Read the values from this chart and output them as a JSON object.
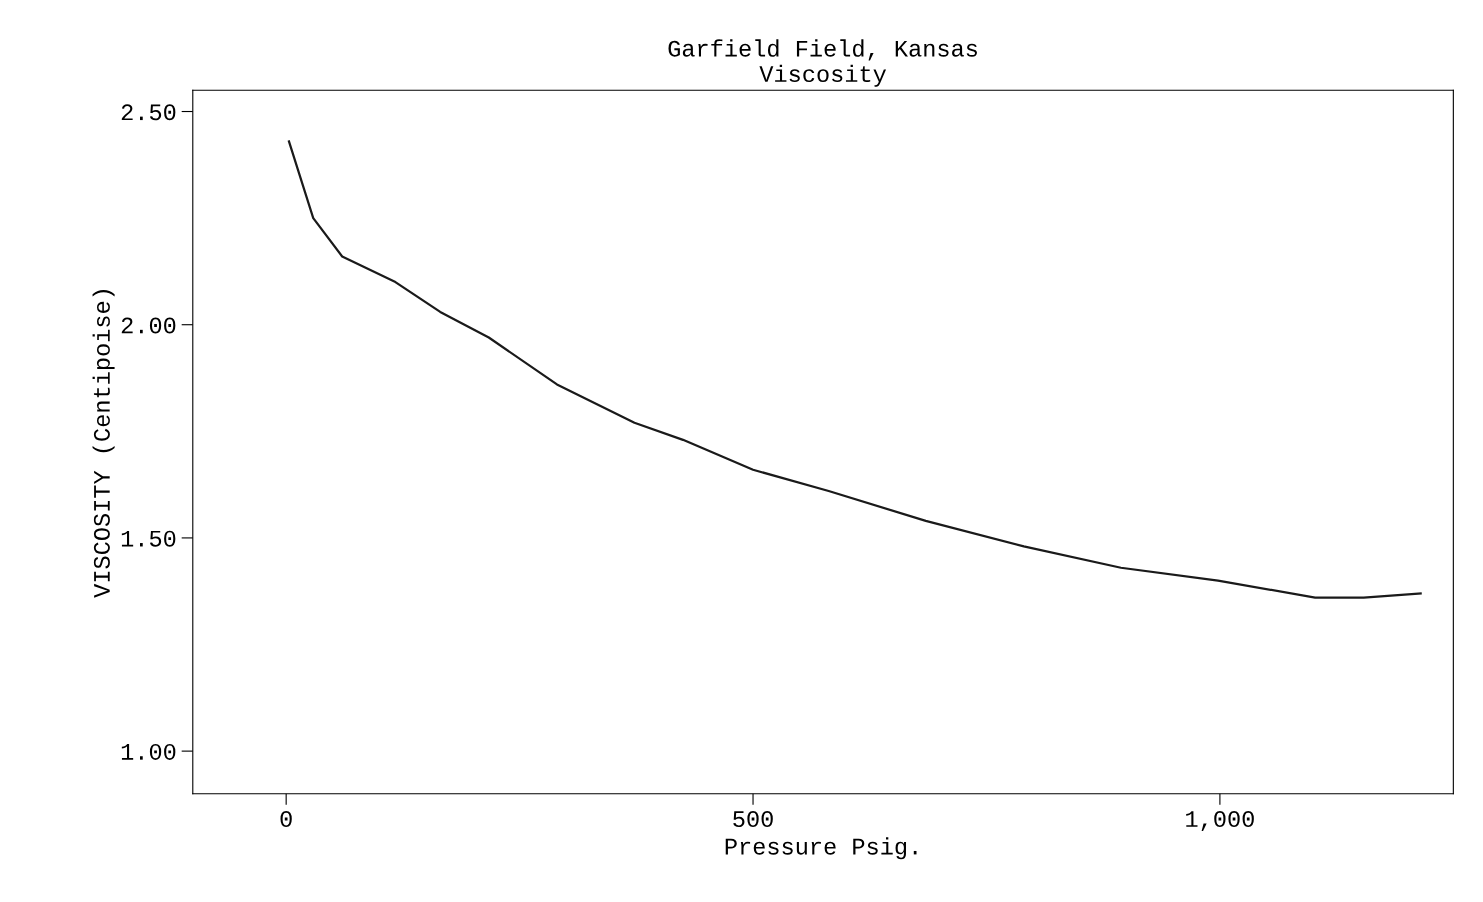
{
  "chart_data": {
    "type": "line",
    "title": "Garfield Field, Kansas\nViscosity",
    "xlabel": "Pressure Psig.",
    "ylabel": "VISCOSITY (Centipoise)",
    "x": [
      3,
      29,
      60,
      117,
      165,
      217,
      290,
      373,
      425,
      500,
      581,
      685,
      790,
      894,
      998,
      1102,
      1154,
      1215
    ],
    "series": [
      {
        "color": "#1a1a1a",
        "values": [
          2.43,
          2.25,
          2.16,
          2.1,
          2.03,
          1.97,
          1.86,
          1.77,
          1.73,
          1.66,
          1.61,
          1.54,
          1.48,
          1.43,
          1.4,
          1.36,
          1.36,
          1.37
        ]
      }
    ],
    "xlim": [
      -100,
      1250
    ],
    "ylim": [
      0.9,
      2.55
    ],
    "xticks": [
      0,
      500,
      {
        "value": 1000,
        "label": "1,000"
      }
    ],
    "yticks": [
      {
        "value": 1.0,
        "label": "1.00"
      },
      {
        "value": 1.5,
        "label": "1.50"
      },
      {
        "value": 2.0,
        "label": "2.00"
      },
      {
        "value": 2.5,
        "label": "2.50"
      }
    ],
    "grid": false,
    "legend": false,
    "marker": "none",
    "line_style": "solid"
  }
}
